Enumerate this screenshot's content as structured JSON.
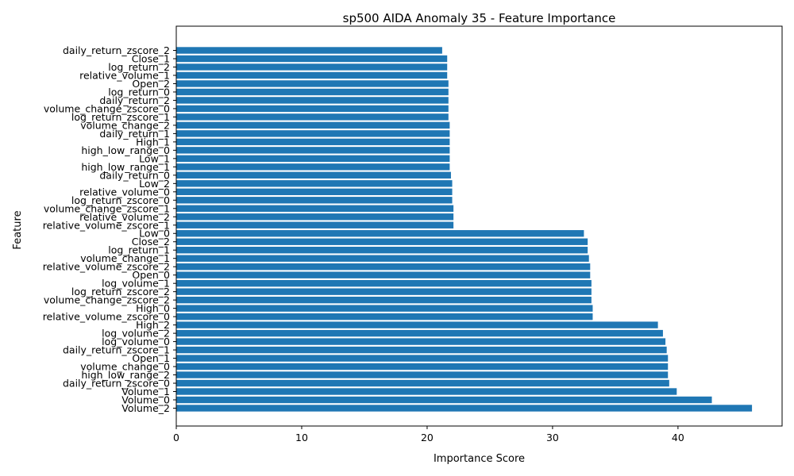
{
  "chart_data": {
    "type": "bar",
    "orientation": "horizontal",
    "title": "sp500 AIDA Anomaly 35 - Feature Importance",
    "xlabel": "Importance Score",
    "ylabel": "Feature",
    "xlim": [
      0,
      48.3
    ],
    "xticks": [
      0,
      10,
      20,
      30,
      40
    ],
    "bar_color": "#1f77b4",
    "grid": false,
    "legend": "none",
    "categories": [
      "Volume_2",
      "Volume_0",
      "Volume_1",
      "daily_return_zscore_0",
      "high_low_range_2",
      "volume_change_0",
      "Open_1",
      "daily_return_zscore_1",
      "log_volume_0",
      "log_volume_2",
      "High_2",
      "relative_volume_zscore_0",
      "High_0",
      "volume_change_zscore_2",
      "log_return_zscore_2",
      "log_volume_1",
      "Open_0",
      "relative_volume_zscore_2",
      "volume_change_1",
      "log_return_1",
      "Close_2",
      "Low_0",
      "relative_volume_zscore_1",
      "relative_volume_2",
      "volume_change_zscore_1",
      "log_return_zscore_0",
      "relative_volume_0",
      "Low_2",
      "daily_return_0",
      "high_low_range_1",
      "Low_1",
      "high_low_range_0",
      "High_1",
      "daily_return_1",
      "volume_change_2",
      "log_return_zscore_1",
      "volume_change_zscore_0",
      "daily_return_2",
      "log_return_0",
      "Open_2",
      "relative_volume_1",
      "log_return_2",
      "Close_1",
      "daily_return_zscore_2"
    ],
    "values": [
      45.9,
      42.7,
      39.9,
      39.3,
      39.2,
      39.2,
      39.2,
      39.1,
      39.0,
      38.8,
      38.4,
      33.2,
      33.2,
      33.1,
      33.1,
      33.1,
      33.0,
      33.0,
      32.9,
      32.8,
      32.8,
      32.5,
      22.1,
      22.1,
      22.1,
      22.0,
      22.0,
      22.0,
      21.9,
      21.8,
      21.8,
      21.8,
      21.8,
      21.8,
      21.8,
      21.7,
      21.7,
      21.7,
      21.7,
      21.7,
      21.6,
      21.6,
      21.6,
      21.2
    ]
  }
}
